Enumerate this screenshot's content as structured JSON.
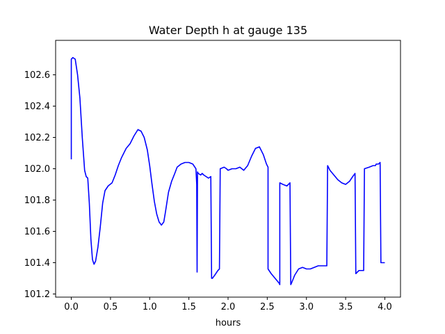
{
  "chart_data": {
    "type": "line",
    "title": "Water Depth h at gauge 135",
    "xlabel": "hours",
    "ylabel": "",
    "xlim": [
      -0.2,
      4.2
    ],
    "ylim": [
      101.18,
      102.82
    ],
    "grid": false,
    "legend": "none",
    "x_ticks": [
      0.0,
      0.5,
      1.0,
      1.5,
      2.0,
      2.5,
      3.0,
      3.5,
      4.0
    ],
    "x_tick_labels": [
      "0.0",
      "0.5",
      "1.0",
      "1.5",
      "2.0",
      "2.5",
      "3.0",
      "3.5",
      "4.0"
    ],
    "y_ticks": [
      101.2,
      101.4,
      101.6,
      101.8,
      102.0,
      102.2,
      102.4,
      102.6
    ],
    "y_tick_labels": [
      "101.2",
      "101.4",
      "101.6",
      "101.8",
      "102.0",
      "102.2",
      "102.4",
      "102.6"
    ],
    "series": [
      {
        "name": "",
        "color": "#0000ff",
        "x": [
          0.0,
          0.0,
          0.02,
          0.05,
          0.08,
          0.11,
          0.14,
          0.17,
          0.19,
          0.21,
          0.23,
          0.25,
          0.27,
          0.29,
          0.31,
          0.34,
          0.37,
          0.4,
          0.43,
          0.47,
          0.52,
          0.56,
          0.6,
          0.64,
          0.67,
          0.7,
          0.75,
          0.8,
          0.85,
          0.89,
          0.93,
          0.97,
          1.0,
          1.03,
          1.06,
          1.09,
          1.12,
          1.15,
          1.18,
          1.2,
          1.24,
          1.28,
          1.32,
          1.35,
          1.4,
          1.45,
          1.5,
          1.55,
          1.59,
          1.6,
          1.605,
          1.61,
          1.62,
          1.65,
          1.67,
          1.69,
          1.72,
          1.75,
          1.78,
          1.79,
          1.8,
          1.83,
          1.87,
          1.89,
          1.9,
          1.95,
          1.98,
          2.0,
          2.05,
          2.1,
          2.15,
          2.2,
          2.25,
          2.3,
          2.35,
          2.4,
          2.45,
          2.49,
          2.51,
          2.51,
          2.55,
          2.6,
          2.65,
          2.66,
          2.66,
          2.7,
          2.75,
          2.79,
          2.8,
          2.81,
          2.85,
          2.9,
          2.95,
          3.0,
          3.05,
          3.1,
          3.15,
          3.2,
          3.24,
          3.26,
          3.27,
          3.3,
          3.35,
          3.4,
          3.45,
          3.5,
          3.55,
          3.59,
          3.62,
          3.63,
          3.67,
          3.73,
          3.74,
          3.8,
          3.85,
          3.88,
          3.89,
          3.92,
          3.94,
          3.95,
          4.0
        ],
        "y": [
          102.06,
          102.7,
          102.71,
          102.7,
          102.6,
          102.45,
          102.2,
          101.99,
          101.95,
          101.94,
          101.78,
          101.55,
          101.42,
          101.39,
          101.41,
          101.5,
          101.63,
          101.78,
          101.86,
          101.89,
          101.91,
          101.96,
          102.02,
          102.07,
          102.1,
          102.13,
          102.16,
          102.21,
          102.25,
          102.24,
          102.2,
          102.12,
          102.02,
          101.9,
          101.79,
          101.71,
          101.66,
          101.64,
          101.66,
          101.72,
          101.85,
          101.92,
          101.97,
          102.01,
          102.03,
          102.04,
          102.04,
          102.03,
          102.0,
          101.9,
          101.34,
          101.98,
          101.97,
          101.96,
          101.97,
          101.96,
          101.95,
          101.94,
          101.95,
          101.3,
          101.3,
          101.32,
          101.35,
          101.36,
          102.0,
          102.01,
          102.0,
          101.99,
          102.0,
          102.0,
          102.01,
          101.99,
          102.02,
          102.08,
          102.13,
          102.14,
          102.09,
          102.03,
          102.01,
          101.36,
          101.33,
          101.3,
          101.27,
          101.26,
          101.91,
          101.9,
          101.89,
          101.91,
          101.26,
          101.27,
          101.32,
          101.36,
          101.37,
          101.36,
          101.36,
          101.37,
          101.38,
          101.38,
          101.38,
          101.38,
          102.02,
          101.99,
          101.96,
          101.93,
          101.91,
          101.9,
          101.92,
          101.95,
          101.97,
          101.33,
          101.35,
          101.35,
          102.0,
          102.01,
          102.02,
          102.02,
          102.03,
          102.03,
          102.04,
          101.4,
          101.4
        ]
      }
    ]
  }
}
